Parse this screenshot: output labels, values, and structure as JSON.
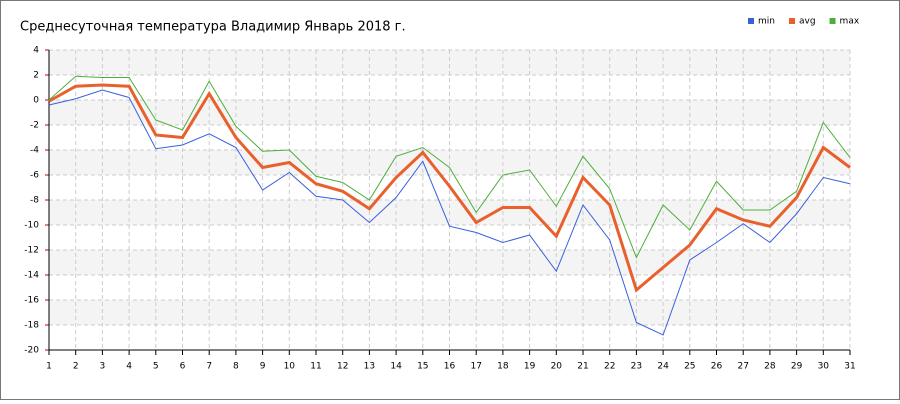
{
  "chart_data": {
    "type": "line",
    "title": "Среднесуточная температура Владимир  Январь 2018 г.",
    "x": [
      1,
      2,
      3,
      4,
      5,
      6,
      7,
      8,
      9,
      10,
      11,
      12,
      13,
      14,
      15,
      16,
      17,
      18,
      19,
      20,
      21,
      22,
      23,
      24,
      25,
      26,
      27,
      28,
      29,
      30,
      31
    ],
    "xlim": [
      1,
      31
    ],
    "xticks": [
      1,
      2,
      3,
      4,
      5,
      6,
      7,
      8,
      9,
      10,
      11,
      12,
      13,
      14,
      15,
      16,
      17,
      18,
      19,
      20,
      21,
      22,
      23,
      24,
      25,
      26,
      27,
      28,
      29,
      30,
      31
    ],
    "ylim": [
      -20,
      4
    ],
    "yticks": [
      -20,
      -18,
      -16,
      -14,
      -12,
      -10,
      -8,
      -6,
      -4,
      -2,
      0,
      2,
      4
    ],
    "grid": true,
    "legend": "top-right",
    "series": [
      {
        "name": "min",
        "color": "#3a5fdc",
        "values": [
          -0.4,
          0.1,
          0.8,
          0.2,
          -3.9,
          -3.6,
          -2.7,
          -3.8,
          -7.2,
          -5.8,
          -7.7,
          -8.0,
          -9.8,
          -7.8,
          -4.9,
          -10.1,
          -10.6,
          -11.4,
          -10.8,
          -13.7,
          -8.4,
          -11.2,
          -17.8,
          -18.8,
          -12.8,
          -11.4,
          -9.9,
          -11.4,
          -9.1,
          -6.2,
          -6.7
        ]
      },
      {
        "name": "avg",
        "color": "#e8602c",
        "values": [
          -0.1,
          1.1,
          1.2,
          1.1,
          -2.8,
          -3.0,
          0.5,
          -3.0,
          -5.4,
          -5.0,
          -6.7,
          -7.3,
          -8.7,
          -6.2,
          -4.2,
          -6.9,
          -9.8,
          -8.6,
          -8.6,
          -10.9,
          -6.2,
          -8.4,
          -15.2,
          -13.4,
          -11.6,
          -8.7,
          -9.6,
          -10.1,
          -7.8,
          -3.8,
          -5.4
        ]
      },
      {
        "name": "max",
        "color": "#4caf3a",
        "values": [
          0,
          1.9,
          1.8,
          1.8,
          -1.6,
          -2.4,
          1.5,
          -2.1,
          -4.1,
          -4.0,
          -6.1,
          -6.6,
          -8.0,
          -4.5,
          -3.8,
          -5.4,
          -9.0,
          -6.0,
          -5.6,
          -8.5,
          -4.5,
          -7.1,
          -12.6,
          -8.4,
          -10.4,
          -6.5,
          -8.8,
          -8.8,
          -7.3,
          -1.8,
          -4.6
        ]
      }
    ]
  }
}
